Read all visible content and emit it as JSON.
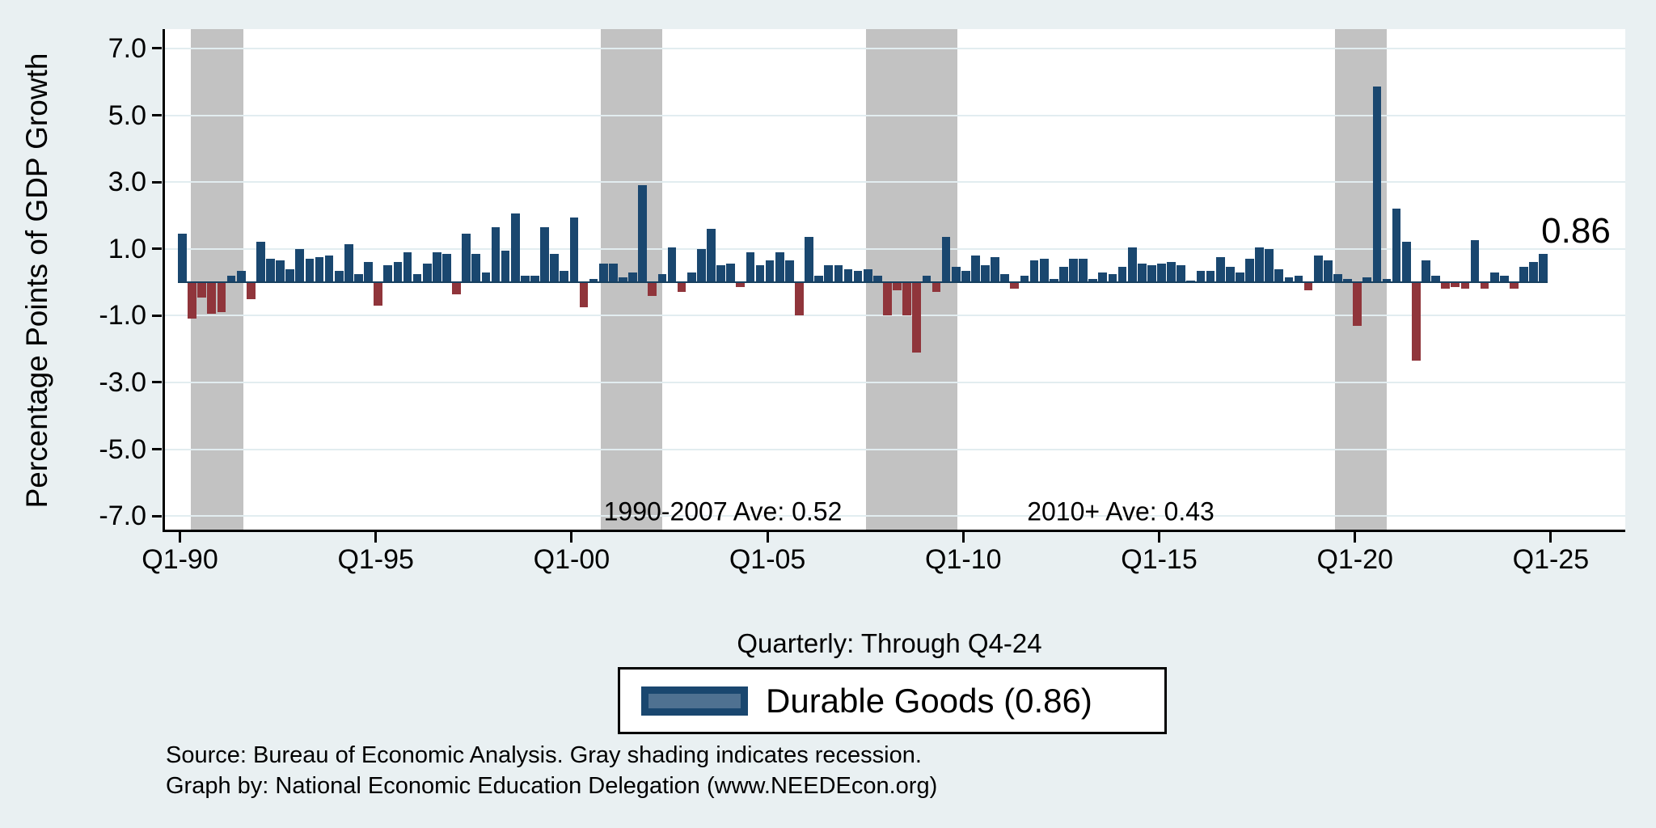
{
  "figure": {
    "y_axis": {
      "title": "Percentage Points of GDP Growth",
      "tick_labels": [
        "7.0",
        "5.0",
        "3.0",
        "1.0",
        "-1.0",
        "-3.0",
        "-5.0",
        "-7.0"
      ],
      "tick_values": [
        7,
        5,
        3,
        1,
        -1,
        -3,
        -5,
        -7
      ]
    },
    "x_axis": {
      "tick_labels": [
        "Q1-90",
        "Q1-95",
        "Q1-00",
        "Q1-05",
        "Q1-10",
        "Q1-15",
        "Q1-20",
        "Q1-25"
      ],
      "subtitle": "Quarterly: Through Q4-24"
    },
    "annotations": {
      "ave_1990_2007": "1990-2007 Ave: 0.52",
      "ave_2010_plus": "2010+ Ave: 0.43",
      "end_value_label": "0.86"
    },
    "legend": {
      "label": "Durable Goods (0.86)"
    },
    "source_line1": "Source: Bureau of Economic Analysis. Gray shading indicates recession.",
    "source_line2": "Graph by: National Economic Education Delegation (www.NEEDEcon.org)",
    "colors": {
      "positive_bar": "#1a476f",
      "negative_bar": "#90353b",
      "recession_shade": "#c2c2c2",
      "background": "#e9f0f2",
      "plot_background": "#ffffff",
      "gridline": "#e2edf0",
      "legend_swatch_inner": "#4f7191"
    }
  },
  "chart_data": {
    "type": "bar",
    "title": "",
    "series_name": "Durable Goods",
    "xlabel": "Quarterly: Through Q4-24",
    "ylabel": "Percentage Points of GDP Growth",
    "frequency": "quarterly",
    "start_period": "1990Q1",
    "end_period": "2024Q4",
    "ylim": [
      -7.5,
      7.6
    ],
    "y_ticks": [
      7,
      5,
      3,
      1,
      -1,
      -3,
      -5,
      -7
    ],
    "x_tick_periods": [
      "1990Q1",
      "1995Q1",
      "2000Q1",
      "2005Q1",
      "2010Q1",
      "2015Q1",
      "2020Q1",
      "2025Q1"
    ],
    "grid": true,
    "legend_position": "bottom-center",
    "values": [
      1.45,
      -1.1,
      -0.45,
      -0.95,
      -0.9,
      0.2,
      0.35,
      -0.5,
      1.2,
      0.7,
      0.65,
      0.4,
      1.0,
      0.7,
      0.75,
      0.8,
      0.35,
      1.15,
      0.25,
      0.6,
      -0.7,
      0.5,
      0.6,
      0.9,
      0.25,
      0.55,
      0.9,
      0.85,
      -0.35,
      1.45,
      0.85,
      0.3,
      1.65,
      0.95,
      2.05,
      0.2,
      0.2,
      1.65,
      0.85,
      0.35,
      1.95,
      -0.75,
      0.1,
      0.55,
      0.55,
      0.15,
      0.3,
      2.9,
      -0.4,
      0.25,
      1.05,
      -0.3,
      0.3,
      1.0,
      1.6,
      0.5,
      0.55,
      -0.15,
      0.9,
      0.5,
      0.65,
      0.9,
      0.65,
      -1.0,
      1.35,
      0.2,
      0.5,
      0.5,
      0.4,
      0.35,
      0.4,
      0.2,
      -1.0,
      -0.25,
      -1.0,
      -2.1,
      0.2,
      -0.3,
      1.35,
      0.45,
      0.35,
      0.8,
      0.5,
      0.75,
      0.25,
      -0.2,
      0.2,
      0.65,
      0.7,
      0.1,
      0.45,
      0.7,
      0.7,
      0.1,
      0.3,
      0.25,
      0.45,
      1.05,
      0.55,
      0.5,
      0.55,
      0.6,
      0.5,
      0.05,
      0.35,
      0.35,
      0.75,
      0.45,
      0.3,
      0.7,
      1.05,
      1.0,
      0.4,
      0.15,
      0.2,
      -0.25,
      0.8,
      0.65,
      0.25,
      0.1,
      -1.3,
      0.15,
      5.85,
      0.1,
      2.2,
      1.2,
      -2.35,
      0.65,
      0.2,
      -0.2,
      -0.15,
      -0.2,
      1.25,
      -0.2,
      0.3,
      0.2,
      -0.2,
      0.45,
      0.6,
      0.86
    ],
    "recession_bands_quarter_index": [
      [
        0.87,
        6.23
      ],
      [
        42.7,
        49.0
      ],
      [
        69.8,
        79.15
      ],
      [
        117.7,
        123.0
      ]
    ],
    "averages": {
      "1990-2007": 0.52,
      "2010+": 0.43
    },
    "last_value": 0.86
  }
}
